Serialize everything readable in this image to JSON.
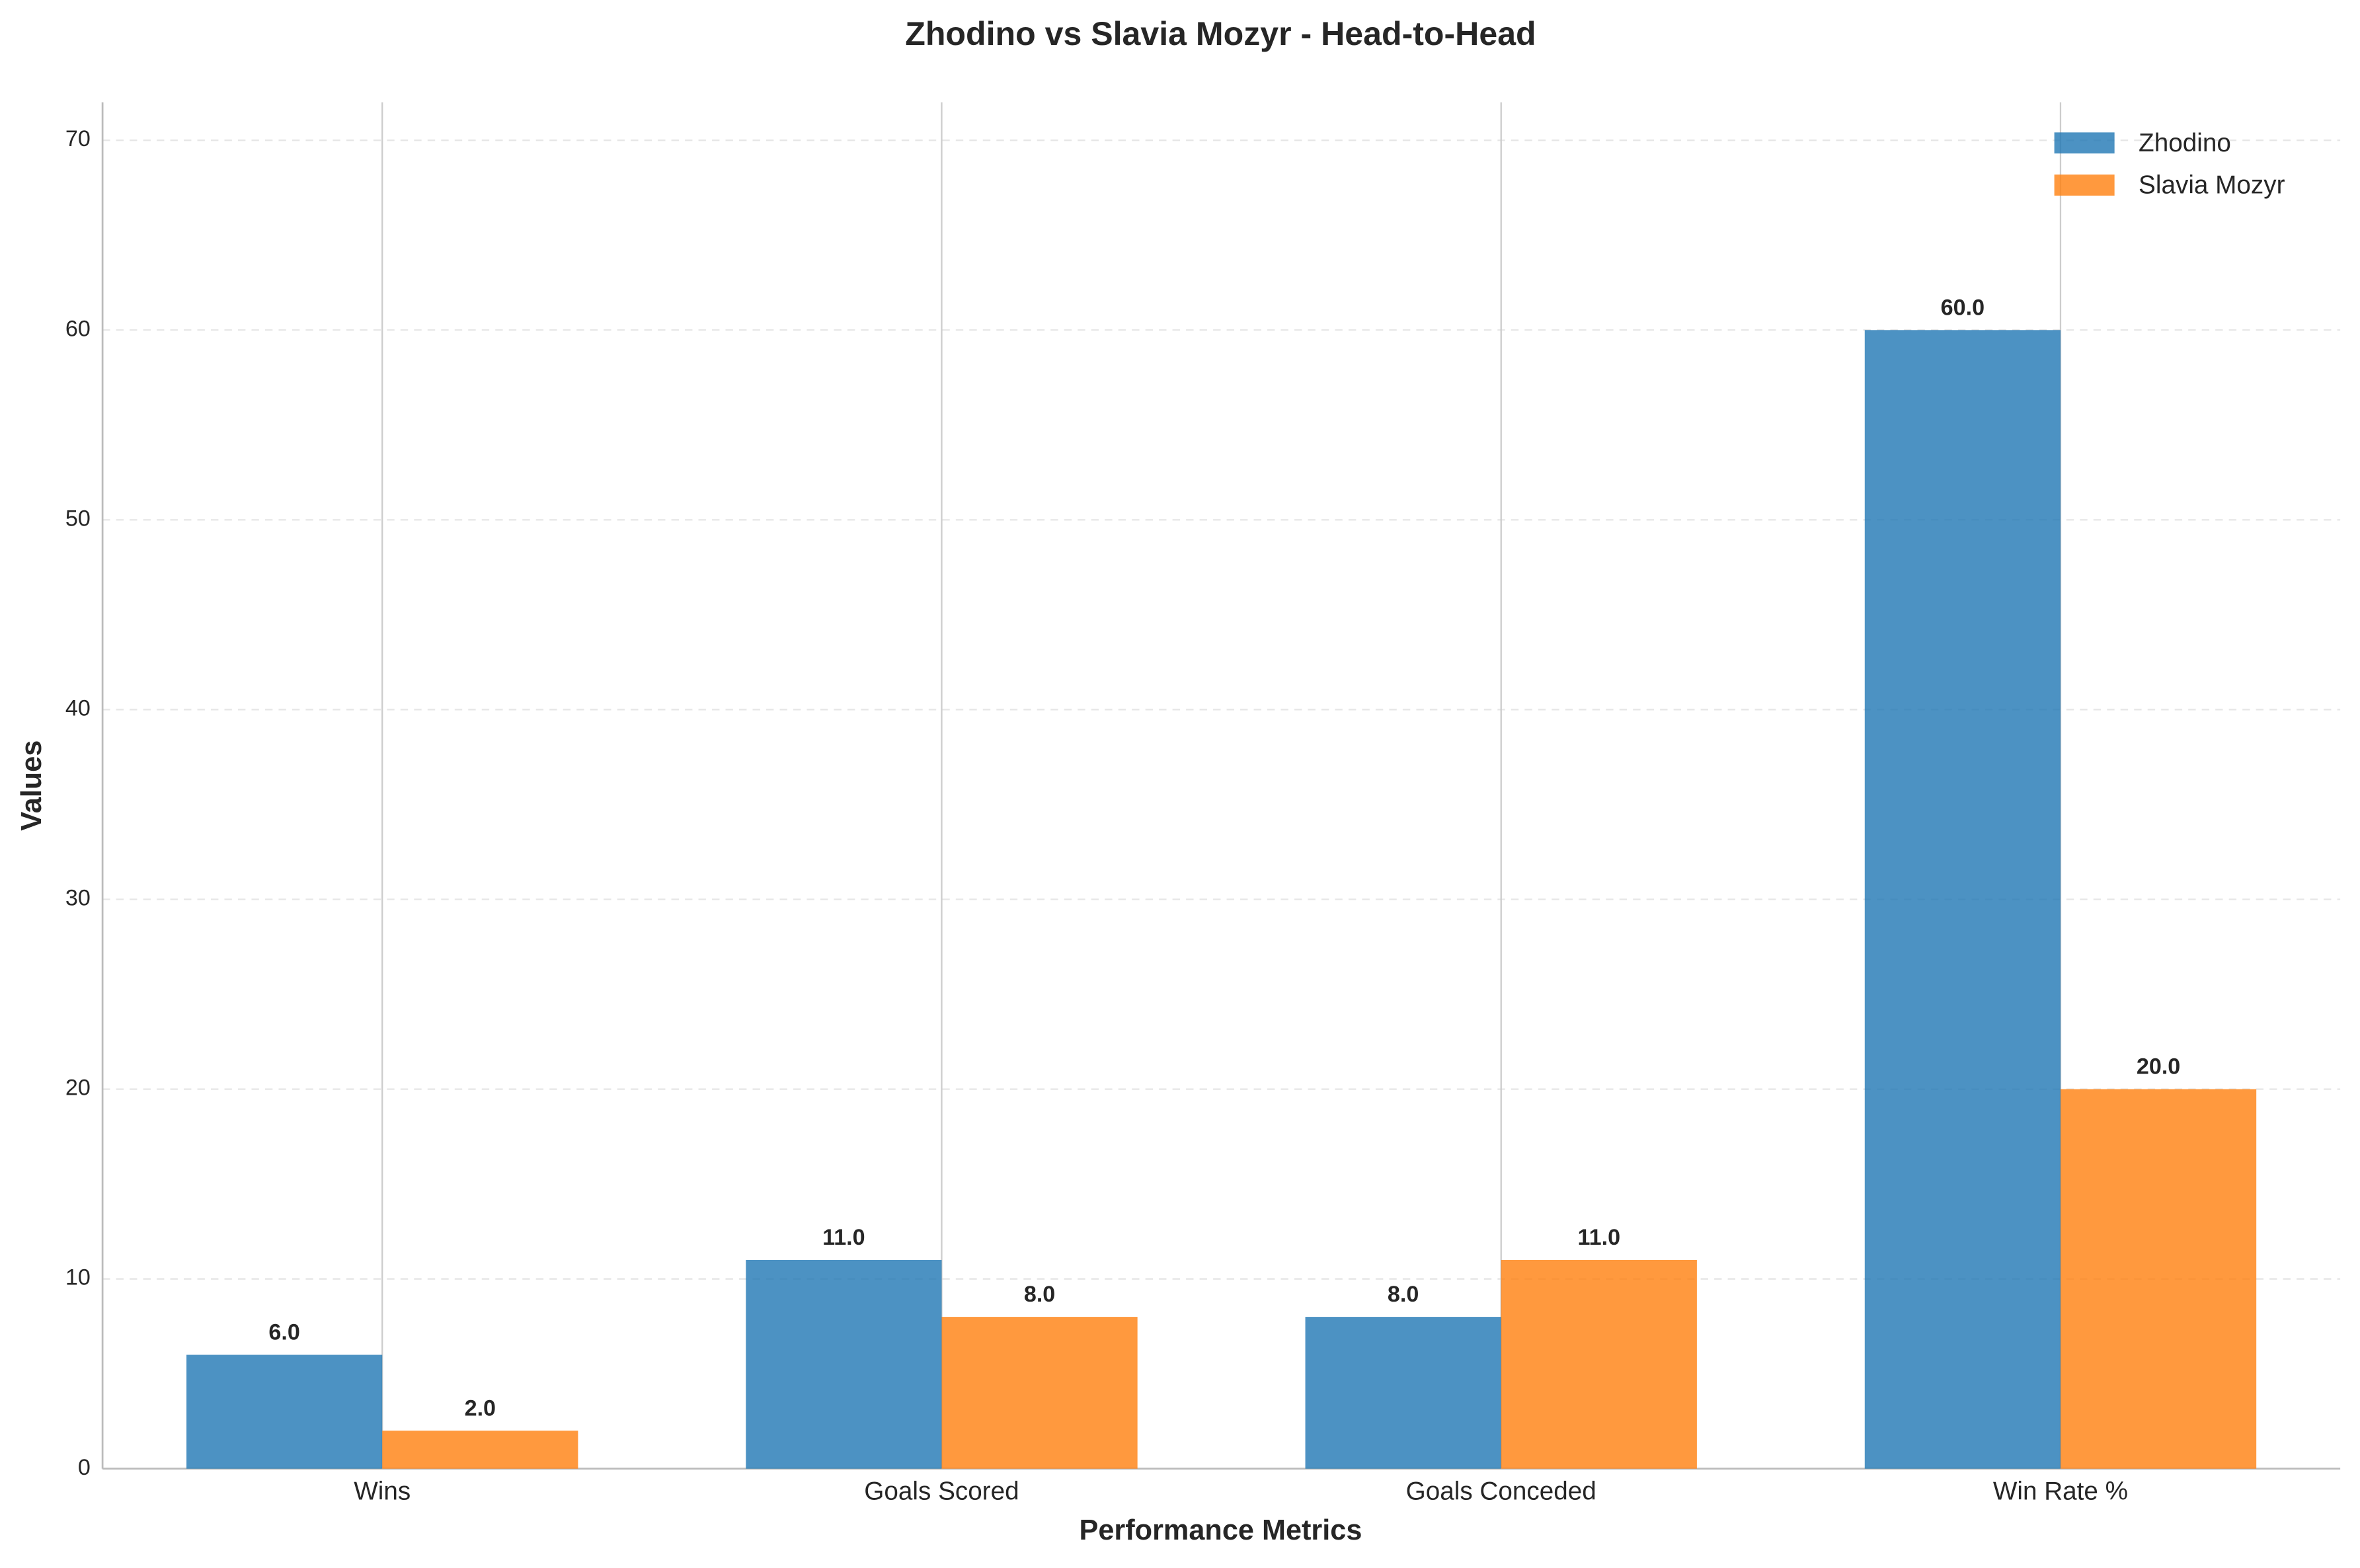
{
  "chart_data": {
    "type": "bar",
    "title": "Zhodino vs Slavia Mozyr - Head-to-Head",
    "x_label": "Performance Metrics",
    "y_label": "Values",
    "categories": [
      "Wins",
      "Goals Scored",
      "Goals Conceded",
      "Win Rate %"
    ],
    "series": [
      {
        "name": "Zhodino",
        "color": "#1f77b4",
        "values": [
          6,
          11,
          8,
          60
        ],
        "value_labels": [
          "6.0",
          "11.0",
          "8.0",
          "60.0"
        ]
      },
      {
        "name": "Slavia Mozyr",
        "color": "#ff7f0e",
        "values": [
          2,
          8,
          11,
          20
        ],
        "value_labels": [
          "2.0",
          "8.0",
          "11.0",
          "20.0"
        ]
      }
    ],
    "ylim": [
      0,
      72
    ],
    "yticks": [
      0,
      10,
      20,
      30,
      40,
      50,
      60,
      70
    ],
    "grid": true,
    "legend": "upper right"
  }
}
